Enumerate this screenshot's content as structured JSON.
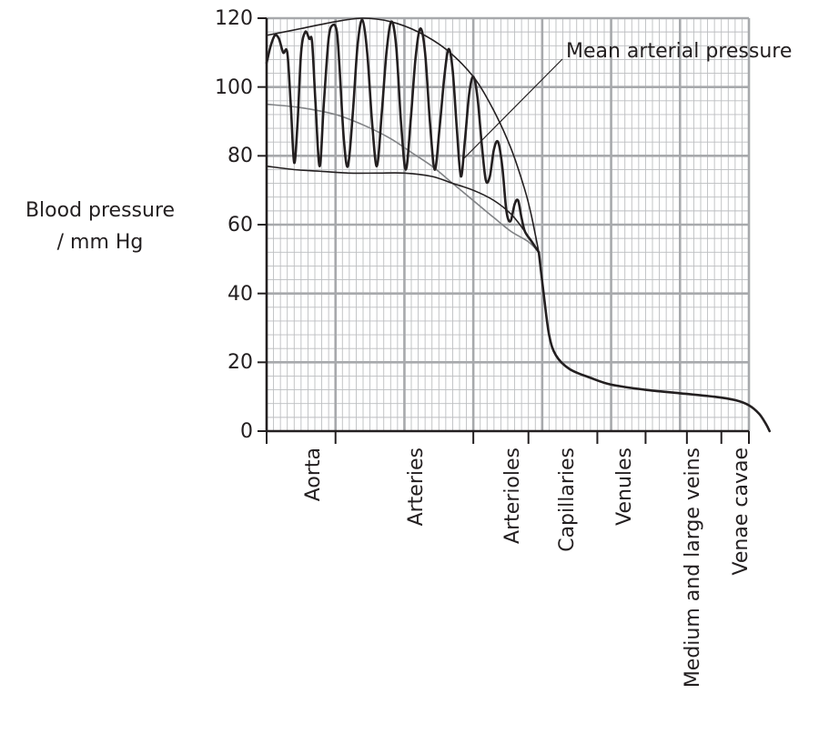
{
  "chart_data": {
    "type": "line",
    "title": "",
    "ylabel_line1": "Blood pressure",
    "ylabel_line2": "/ mm Hg",
    "ylim": [
      0,
      120
    ],
    "yticks": [
      "0",
      "20",
      "40",
      "60",
      "80",
      "100",
      "120"
    ],
    "categories": [
      "Aorta",
      "Arteries",
      "Arterioles",
      "Capillaries",
      "Venules",
      "Medium and large veins",
      "Venae cavae"
    ],
    "annotation": "Mean arterial pressure",
    "grid": true,
    "series": [
      {
        "role": "systolic envelope",
        "points": [
          [
            0.0,
            115
          ],
          [
            5,
            117
          ],
          [
            10,
            119
          ],
          [
            14,
            120
          ],
          [
            18,
            119
          ],
          [
            22,
            116
          ],
          [
            26,
            111
          ],
          [
            30,
            103
          ],
          [
            33,
            93
          ],
          [
            35.5,
            82
          ],
          [
            37.5,
            70
          ],
          [
            38.5,
            62
          ],
          [
            39.5,
            52
          ]
        ]
      },
      {
        "role": "diastolic envelope",
        "points": [
          [
            0.0,
            77
          ],
          [
            4,
            76
          ],
          [
            8,
            75.5
          ],
          [
            12,
            75
          ],
          [
            16,
            75
          ],
          [
            20,
            75
          ],
          [
            24,
            74
          ],
          [
            27,
            72
          ],
          [
            30,
            70
          ],
          [
            33,
            67
          ],
          [
            35.5,
            63
          ],
          [
            37.5,
            58
          ],
          [
            38.5,
            55
          ],
          [
            39.5,
            52
          ]
        ]
      },
      {
        "role": "mean arterial pressure",
        "points": [
          [
            0.0,
            95
          ],
          [
            5,
            94
          ],
          [
            10,
            92
          ],
          [
            14,
            89
          ],
          [
            18,
            85
          ],
          [
            21,
            81
          ],
          [
            24,
            77
          ],
          [
            27,
            72
          ],
          [
            30,
            67
          ],
          [
            33,
            62
          ],
          [
            35.5,
            58
          ],
          [
            38,
            55
          ],
          [
            39.5,
            52
          ]
        ]
      },
      {
        "role": "venous return",
        "points": [
          [
            39.5,
            52
          ],
          [
            40.2,
            40
          ],
          [
            41,
            28
          ],
          [
            42,
            22
          ],
          [
            44,
            18
          ],
          [
            47,
            15.5
          ],
          [
            50,
            13.5
          ],
          [
            55,
            12
          ],
          [
            60,
            11
          ],
          [
            65,
            10
          ],
          [
            68,
            9
          ],
          [
            70,
            7.5
          ],
          [
            71.5,
            5
          ],
          [
            72.5,
            2
          ],
          [
            73,
            0
          ]
        ]
      },
      {
        "role": "pulsatile pressure",
        "points": [
          [
            0.0,
            107
          ],
          [
            0.6,
            112
          ],
          [
            1.2,
            115
          ],
          [
            1.8,
            114
          ],
          [
            2.4,
            110
          ],
          [
            3.0,
            110
          ],
          [
            3.5,
            95
          ],
          [
            4.0,
            78
          ],
          [
            4.5,
            90
          ],
          [
            5.0,
            110
          ],
          [
            5.6,
            116
          ],
          [
            6.2,
            114
          ],
          [
            6.6,
            113
          ],
          [
            7.1,
            95
          ],
          [
            7.7,
            77
          ],
          [
            8.3,
            95
          ],
          [
            9.0,
            114
          ],
          [
            9.6,
            118
          ],
          [
            10.2,
            116
          ],
          [
            10.6,
            105
          ],
          [
            11.2,
            85
          ],
          [
            11.8,
            77
          ],
          [
            12.5,
            92
          ],
          [
            13.2,
            112
          ],
          [
            13.9,
            119.5
          ],
          [
            14.6,
            110
          ],
          [
            15.3,
            90
          ],
          [
            16.0,
            77
          ],
          [
            16.7,
            92
          ],
          [
            17.4,
            110
          ],
          [
            18.1,
            119
          ],
          [
            18.8,
            112
          ],
          [
            19.5,
            90
          ],
          [
            20.2,
            76
          ],
          [
            20.9,
            90
          ],
          [
            21.6,
            108
          ],
          [
            22.3,
            117
          ],
          [
            23.0,
            110
          ],
          [
            23.7,
            90
          ],
          [
            24.4,
            76
          ],
          [
            25.1,
            88
          ],
          [
            25.8,
            103
          ],
          [
            26.4,
            111
          ],
          [
            27.0,
            105
          ],
          [
            27.6,
            88
          ],
          [
            28.2,
            74
          ],
          [
            28.8,
            85
          ],
          [
            29.4,
            98
          ],
          [
            30.0,
            103
          ],
          [
            30.6,
            97
          ],
          [
            31.2,
            84
          ],
          [
            31.8,
            73
          ],
          [
            32.4,
            74
          ],
          [
            33.0,
            82
          ],
          [
            33.6,
            84
          ],
          [
            34.2,
            77
          ],
          [
            34.8,
            64
          ],
          [
            35.4,
            61
          ],
          [
            36.0,
            66
          ],
          [
            36.5,
            67
          ],
          [
            37.0,
            62
          ],
          [
            37.5,
            58
          ],
          [
            38.5,
            55
          ],
          [
            39.5,
            52
          ]
        ]
      }
    ]
  }
}
